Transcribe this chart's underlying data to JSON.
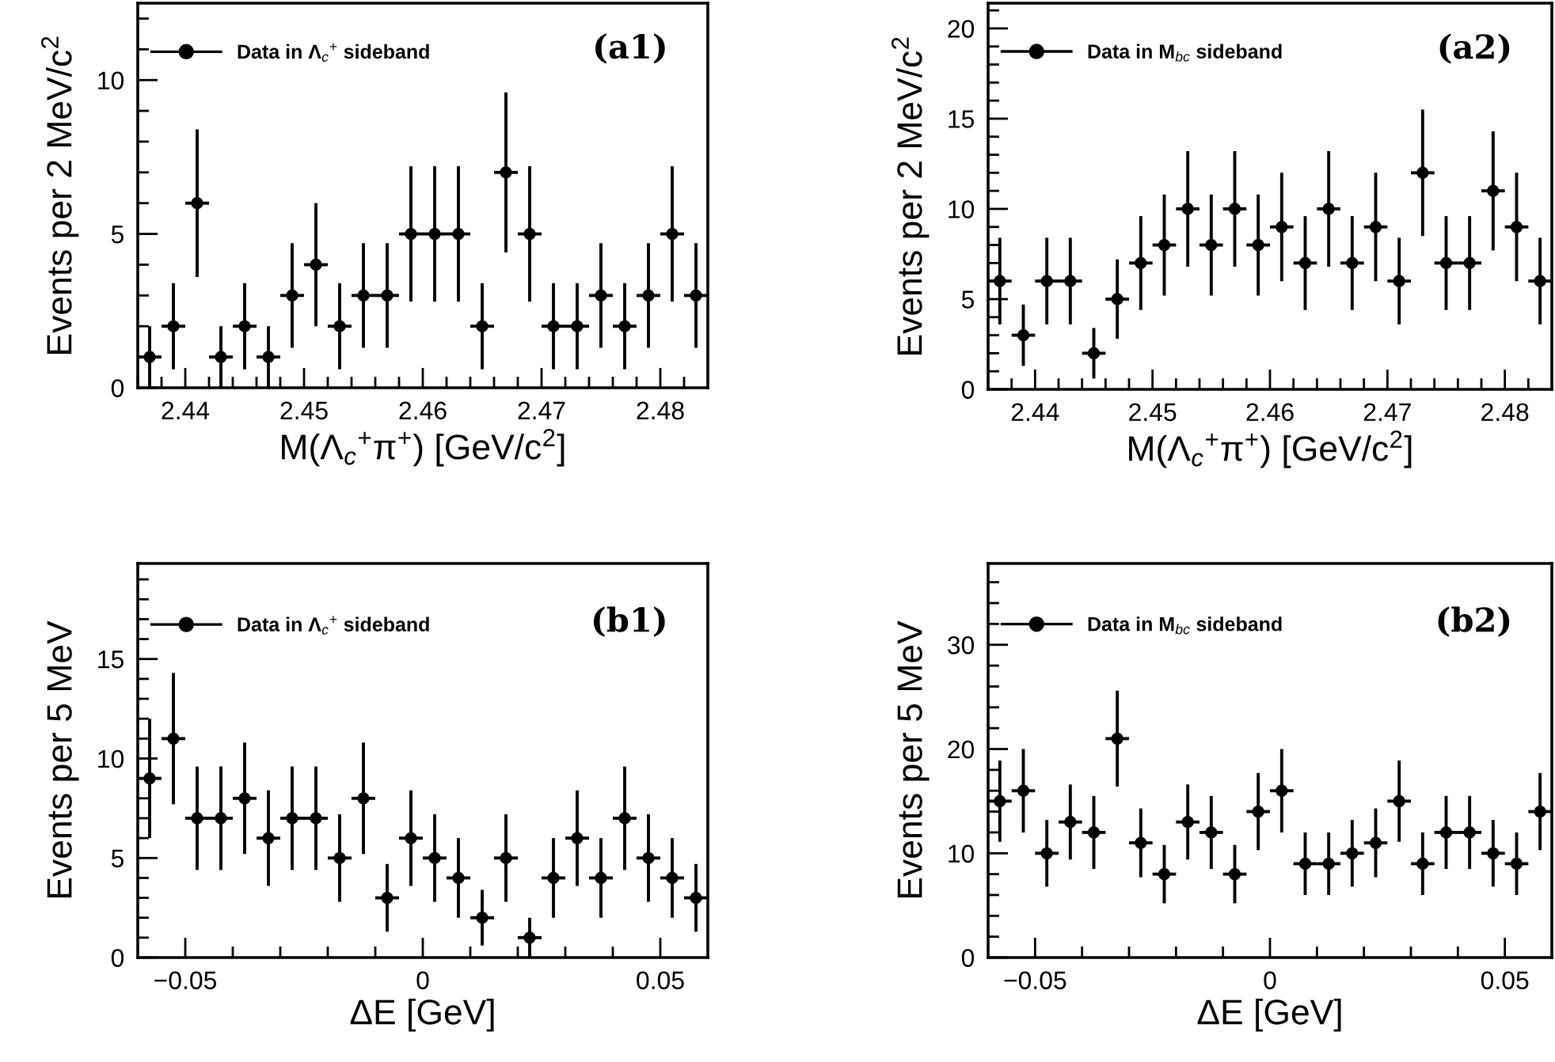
{
  "chart_data": [
    {
      "type": "scatter",
      "xlabel": "M(Λ$_{c}$$^{+}$π$^{+}$) [GeV/c$^{2}$]",
      "ylabel": "Events per 2 MeV/c$^{2}$",
      "annotations": [
        "(a1)"
      ],
      "legend": "top left",
      "marker": "circle",
      "x": [
        2.437,
        2.439,
        2.441,
        2.443,
        2.445,
        2.447,
        2.449,
        2.451,
        2.453,
        2.455,
        2.457,
        2.459,
        2.461,
        2.463,
        2.465,
        2.467,
        2.469,
        2.471,
        2.473,
        2.475,
        2.477,
        2.479,
        2.481,
        2.483
      ],
      "series": [
        {
          "name": "Data in Λ$_{c}$$^{+}$ sideband",
          "color": "#000000",
          "values": [
            1,
            2,
            6,
            1,
            2,
            1,
            3,
            4,
            2,
            3,
            3,
            5,
            5,
            5,
            2,
            7,
            5,
            2,
            2,
            3,
            2,
            3,
            5,
            3
          ],
          "errors": [
            1,
            1.4,
            2.4,
            1,
            1.4,
            1,
            1.7,
            2,
            1.4,
            1.7,
            1.7,
            2.2,
            2.2,
            2.2,
            1.4,
            2.6,
            2.2,
            1.4,
            1.4,
            1.7,
            1.4,
            1.7,
            2.2,
            1.7
          ],
          "xerrors": [
            0.001,
            0.001,
            0.001,
            0.001,
            0.001,
            0.001,
            0.001,
            0.001,
            0.001,
            0.001,
            0.001,
            0.001,
            0.001,
            0.001,
            0.001,
            0.001,
            0.001,
            0.001,
            0.001,
            0.001,
            0.001,
            0.001,
            0.001,
            0.001
          ]
        }
      ],
      "xlim": [
        2.436,
        2.484
      ],
      "ylim": [
        0,
        12.5
      ],
      "xticks": [
        {
          "value": 2.436,
          "label": null
        },
        {
          "value": 2.438,
          "label": null
        },
        2.44,
        {
          "value": 2.442,
          "label": null
        },
        {
          "value": 2.444,
          "label": null
        },
        {
          "value": 2.446,
          "label": null
        },
        {
          "value": 2.448,
          "label": null
        },
        2.45,
        {
          "value": 2.452,
          "label": null
        },
        {
          "value": 2.454,
          "label": null
        },
        {
          "value": 2.456,
          "label": null
        },
        {
          "value": 2.458,
          "label": null
        },
        2.46,
        {
          "value": 2.462,
          "label": null
        },
        {
          "value": 2.464,
          "label": null
        },
        {
          "value": 2.466,
          "label": null
        },
        {
          "value": 2.468,
          "label": null
        },
        2.47,
        {
          "value": 2.472,
          "label": null
        },
        {
          "value": 2.474,
          "label": null
        },
        {
          "value": 2.476,
          "label": null
        },
        {
          "value": 2.478,
          "label": null
        },
        2.48,
        {
          "value": 2.482,
          "label": null
        }
      ],
      "yticks": [
        0,
        {
          "value": 1,
          "label": null
        },
        {
          "value": 2,
          "label": null
        },
        {
          "value": 3,
          "label": null
        },
        {
          "value": 4,
          "label": null
        },
        5,
        {
          "value": 6,
          "label": null
        },
        {
          "value": 7,
          "label": null
        },
        {
          "value": 8,
          "label": null
        },
        {
          "value": 9,
          "label": null
        },
        10,
        {
          "value": 11,
          "label": null
        },
        {
          "value": 12,
          "label": null
        }
      ]
    },
    {
      "type": "scatter",
      "xlabel": "M(Λ$_{c}$$^{+}$π$^{+}$) [GeV/c$^{2}$]",
      "ylabel": "Events per 2 MeV/c$^{2}$",
      "annotations": [
        "(a2)"
      ],
      "legend": "top left",
      "marker": "circle",
      "x": [
        2.437,
        2.439,
        2.441,
        2.443,
        2.445,
        2.447,
        2.449,
        2.451,
        2.453,
        2.455,
        2.457,
        2.459,
        2.461,
        2.463,
        2.465,
        2.467,
        2.469,
        2.471,
        2.473,
        2.475,
        2.477,
        2.479,
        2.481,
        2.483
      ],
      "series": [
        {
          "name": "Data in M$_{bc}$ sideband",
          "color": "#000000",
          "values": [
            6,
            3,
            6,
            6,
            2,
            5,
            7,
            8,
            10,
            8,
            10,
            8,
            9,
            7,
            10,
            7,
            9,
            6,
            12,
            7,
            7,
            11,
            9,
            6
          ],
          "errors": [
            2.4,
            1.7,
            2.4,
            2.4,
            1.4,
            2.2,
            2.6,
            2.8,
            3.2,
            2.8,
            3.2,
            2.8,
            3,
            2.6,
            3.2,
            2.6,
            3,
            2.4,
            3.5,
            2.6,
            2.6,
            3.3,
            3,
            2.4
          ],
          "xerrors": [
            0.001,
            0.001,
            0.001,
            0.001,
            0.001,
            0.001,
            0.001,
            0.001,
            0.001,
            0.001,
            0.001,
            0.001,
            0.001,
            0.001,
            0.001,
            0.001,
            0.001,
            0.001,
            0.001,
            0.001,
            0.001,
            0.001,
            0.001,
            0.001
          ]
        }
      ],
      "xlim": [
        2.436,
        2.484
      ],
      "ylim": [
        0,
        21.4
      ],
      "xticks": [
        {
          "value": 2.436,
          "label": null
        },
        {
          "value": 2.438,
          "label": null
        },
        2.44,
        {
          "value": 2.442,
          "label": null
        },
        {
          "value": 2.444,
          "label": null
        },
        {
          "value": 2.446,
          "label": null
        },
        {
          "value": 2.448,
          "label": null
        },
        2.45,
        {
          "value": 2.452,
          "label": null
        },
        {
          "value": 2.454,
          "label": null
        },
        {
          "value": 2.456,
          "label": null
        },
        {
          "value": 2.458,
          "label": null
        },
        2.46,
        {
          "value": 2.462,
          "label": null
        },
        {
          "value": 2.464,
          "label": null
        },
        {
          "value": 2.466,
          "label": null
        },
        {
          "value": 2.468,
          "label": null
        },
        2.47,
        {
          "value": 2.472,
          "label": null
        },
        {
          "value": 2.474,
          "label": null
        },
        {
          "value": 2.476,
          "label": null
        },
        {
          "value": 2.478,
          "label": null
        },
        2.48,
        {
          "value": 2.482,
          "label": null
        }
      ],
      "yticks": [
        0,
        {
          "value": 1,
          "label": null
        },
        {
          "value": 2,
          "label": null
        },
        {
          "value": 3,
          "label": null
        },
        {
          "value": 4,
          "label": null
        },
        5,
        {
          "value": 6,
          "label": null
        },
        {
          "value": 7,
          "label": null
        },
        {
          "value": 8,
          "label": null
        },
        {
          "value": 9,
          "label": null
        },
        10,
        {
          "value": 11,
          "label": null
        },
        {
          "value": 12,
          "label": null
        },
        {
          "value": 13,
          "label": null
        },
        {
          "value": 14,
          "label": null
        },
        15,
        {
          "value": 16,
          "label": null
        },
        {
          "value": 17,
          "label": null
        },
        {
          "value": 18,
          "label": null
        },
        {
          "value": 19,
          "label": null
        },
        20,
        {
          "value": 21,
          "label": null
        }
      ]
    },
    {
      "type": "scatter",
      "xlabel": "ΔE [GeV]",
      "ylabel": "Events per 5 MeV",
      "annotations": [
        "(b1)"
      ],
      "legend": "top left",
      "marker": "circle",
      "x": [
        -0.0575,
        -0.0525,
        -0.0475,
        -0.0425,
        -0.0375,
        -0.0325,
        -0.0275,
        -0.0225,
        -0.0175,
        -0.0125,
        -0.0075,
        -0.0025,
        0.0025,
        0.0075,
        0.0125,
        0.0175,
        0.0225,
        0.0275,
        0.0325,
        0.0375,
        0.0425,
        0.0475,
        0.0525,
        0.0575
      ],
      "series": [
        {
          "name": "Data in Λ$_{c}$$^{+}$ sideband",
          "color": "#000000",
          "values": [
            9,
            11,
            7,
            7,
            8,
            6,
            7,
            7,
            5,
            8,
            3,
            6,
            5,
            4,
            2,
            5,
            1,
            4,
            6,
            4,
            7,
            5,
            4,
            3
          ],
          "errors": [
            3,
            3.3,
            2.6,
            2.6,
            2.8,
            2.4,
            2.6,
            2.6,
            2.2,
            2.8,
            1.7,
            2.4,
            2.2,
            2,
            1.4,
            2.2,
            1,
            2,
            2.4,
            2,
            2.6,
            2.2,
            2,
            1.7
          ],
          "xerrors": [
            0.0025,
            0.0025,
            0.0025,
            0.0025,
            0.0025,
            0.0025,
            0.0025,
            0.0025,
            0.0025,
            0.0025,
            0.0025,
            0.0025,
            0.0025,
            0.0025,
            0.0025,
            0.0025,
            0.0025,
            0.0025,
            0.0025,
            0.0025,
            0.0025,
            0.0025,
            0.0025,
            0.0025
          ]
        }
      ],
      "xlim": [
        -0.06,
        0.06
      ],
      "ylim": [
        0,
        19.8
      ],
      "xticks": [
        {
          "value": -0.05,
          "label": "−0.05"
        },
        {
          "value": -0.04,
          "label": null
        },
        {
          "value": -0.03,
          "label": null
        },
        {
          "value": -0.02,
          "label": null
        },
        {
          "value": -0.01,
          "label": null
        },
        0,
        {
          "value": 0.01,
          "label": null
        },
        {
          "value": 0.02,
          "label": null
        },
        {
          "value": 0.03,
          "label": null
        },
        {
          "value": 0.04,
          "label": null
        },
        0.05
      ],
      "yticks": [
        0,
        {
          "value": 1,
          "label": null
        },
        {
          "value": 2,
          "label": null
        },
        {
          "value": 3,
          "label": null
        },
        {
          "value": 4,
          "label": null
        },
        5,
        {
          "value": 6,
          "label": null
        },
        {
          "value": 7,
          "label": null
        },
        {
          "value": 8,
          "label": null
        },
        {
          "value": 9,
          "label": null
        },
        10,
        {
          "value": 11,
          "label": null
        },
        {
          "value": 12,
          "label": null
        },
        {
          "value": 13,
          "label": null
        },
        {
          "value": 14,
          "label": null
        },
        15,
        {
          "value": 16,
          "label": null
        },
        {
          "value": 17,
          "label": null
        },
        {
          "value": 18,
          "label": null
        },
        {
          "value": 19,
          "label": null
        }
      ]
    },
    {
      "type": "scatter",
      "xlabel": "ΔE [GeV]",
      "ylabel": "Events per 5 MeV",
      "annotations": [
        "(b2)"
      ],
      "legend": "top left",
      "marker": "circle",
      "x": [
        -0.0575,
        -0.0525,
        -0.0475,
        -0.0425,
        -0.0375,
        -0.0325,
        -0.0275,
        -0.0225,
        -0.0175,
        -0.0125,
        -0.0075,
        -0.0025,
        0.0025,
        0.0075,
        0.0125,
        0.0175,
        0.0225,
        0.0275,
        0.0325,
        0.0375,
        0.0425,
        0.0475,
        0.0525,
        0.0575
      ],
      "series": [
        {
          "name": "Data in M$_{bc}$ sideband",
          "color": "#000000",
          "values": [
            15,
            16,
            10,
            13,
            12,
            21,
            11,
            8,
            13,
            12,
            8,
            14,
            16,
            9,
            9,
            10,
            11,
            15,
            9,
            12,
            12,
            10,
            9,
            14
          ],
          "errors": [
            3.9,
            4,
            3.2,
            3.6,
            3.5,
            4.6,
            3.3,
            2.8,
            3.6,
            3.5,
            2.8,
            3.7,
            4,
            3,
            3,
            3.2,
            3.3,
            3.9,
            3,
            3.5,
            3.5,
            3.2,
            3,
            3.7
          ],
          "xerrors": [
            0.0025,
            0.0025,
            0.0025,
            0.0025,
            0.0025,
            0.0025,
            0.0025,
            0.0025,
            0.0025,
            0.0025,
            0.0025,
            0.0025,
            0.0025,
            0.0025,
            0.0025,
            0.0025,
            0.0025,
            0.0025,
            0.0025,
            0.0025,
            0.0025,
            0.0025,
            0.0025,
            0.0025
          ]
        }
      ],
      "xlim": [
        -0.06,
        0.06
      ],
      "ylim": [
        0,
        37.8
      ],
      "xticks": [
        {
          "value": -0.05,
          "label": "−0.05"
        },
        {
          "value": -0.04,
          "label": null
        },
        {
          "value": -0.03,
          "label": null
        },
        {
          "value": -0.02,
          "label": null
        },
        {
          "value": -0.01,
          "label": null
        },
        0,
        {
          "value": 0.01,
          "label": null
        },
        {
          "value": 0.02,
          "label": null
        },
        {
          "value": 0.03,
          "label": null
        },
        {
          "value": 0.04,
          "label": null
        },
        0.05
      ],
      "yticks": [
        0,
        {
          "value": 2,
          "label": null
        },
        {
          "value": 4,
          "label": null
        },
        {
          "value": 6,
          "label": null
        },
        {
          "value": 8,
          "label": null
        },
        10,
        {
          "value": 12,
          "label": null
        },
        {
          "value": 14,
          "label": null
        },
        {
          "value": 16,
          "label": null
        },
        {
          "value": 18,
          "label": null
        },
        20,
        {
          "value": 22,
          "label": null
        },
        {
          "value": 24,
          "label": null
        },
        {
          "value": 26,
          "label": null
        },
        {
          "value": 28,
          "label": null
        },
        30,
        {
          "value": 32,
          "label": null
        },
        {
          "value": 34,
          "label": null
        },
        {
          "value": 36,
          "label": null
        }
      ]
    }
  ]
}
